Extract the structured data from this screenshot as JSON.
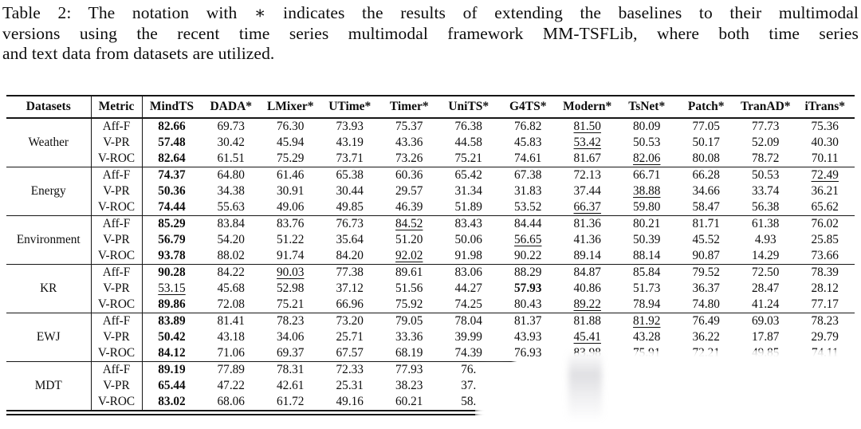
{
  "caption": {
    "lines": [
      "Table 2:  The notation with ∗ indicates the results of extending the baselines to their multimodal",
      "versions using the recent time series multimodal framework MM-TSFLib, where both time series",
      "and text data from datasets are utilized."
    ]
  },
  "table": {
    "columns": [
      "Datasets",
      "Metric",
      "MindTS",
      "DADA*",
      "LMixer*",
      "UTime*",
      "Timer*",
      "UniTS*",
      "G4TS*",
      "Modern*",
      "TsNet*",
      "Patch*",
      "TranAD*",
      "iTrans*"
    ],
    "style_legend": {
      "b": "bold",
      "u": "underlined",
      "n": "normal"
    },
    "groups": [
      {
        "dataset": "Weather",
        "rows": [
          {
            "metric": "Aff-F",
            "cells": [
              "b:82.66",
              "n:69.73",
              "n:76.30",
              "n:73.93",
              "n:75.37",
              "n:76.38",
              "n:76.82",
              "u:81.50",
              "n:80.09",
              "n:77.05",
              "n:77.73",
              "n:75.36"
            ]
          },
          {
            "metric": "V-PR",
            "cells": [
              "b:57.48",
              "n:30.42",
              "n:45.94",
              "n:43.19",
              "n:43.36",
              "n:44.58",
              "n:45.83",
              "u:53.42",
              "n:50.53",
              "n:50.17",
              "n:52.09",
              "n:40.30"
            ]
          },
          {
            "metric": "V-ROC",
            "cells": [
              "b:82.64",
              "n:61.51",
              "n:75.29",
              "n:73.71",
              "n:73.26",
              "n:75.21",
              "n:74.61",
              "n:81.67",
              "u:82.06",
              "n:80.08",
              "n:78.72",
              "n:70.11"
            ]
          }
        ]
      },
      {
        "dataset": "Energy",
        "rows": [
          {
            "metric": "Aff-F",
            "cells": [
              "b:74.37",
              "n:64.80",
              "n:61.46",
              "n:65.38",
              "n:60.36",
              "n:65.42",
              "n:67.38",
              "n:72.13",
              "n:66.71",
              "n:66.28",
              "n:50.53",
              "u:72.49"
            ]
          },
          {
            "metric": "V-PR",
            "cells": [
              "b:50.36",
              "n:34.38",
              "n:30.91",
              "n:30.44",
              "n:29.57",
              "n:31.34",
              "n:31.83",
              "n:37.44",
              "u:38.88",
              "n:34.66",
              "n:33.74",
              "n:36.21"
            ]
          },
          {
            "metric": "V-ROC",
            "cells": [
              "b:74.44",
              "n:55.63",
              "n:49.06",
              "n:49.85",
              "n:46.39",
              "n:51.89",
              "n:53.52",
              "u:66.37",
              "n:59.80",
              "n:58.47",
              "n:56.38",
              "n:65.62"
            ]
          }
        ]
      },
      {
        "dataset": "Environment",
        "rows": [
          {
            "metric": "Aff-F",
            "cells": [
              "b:85.29",
              "n:83.84",
              "n:83.76",
              "n:76.73",
              "u:84.52",
              "n:83.43",
              "n:84.44",
              "n:81.36",
              "n:80.21",
              "n:81.71",
              "n:61.38",
              "n:76.02"
            ]
          },
          {
            "metric": "V-PR",
            "cells": [
              "b:56.79",
              "n:54.20",
              "n:51.22",
              "n:35.64",
              "n:51.20",
              "n:50.06",
              "u:56.65",
              "n:41.36",
              "n:50.39",
              "n:45.52",
              "n:4.93",
              "n:25.85"
            ]
          },
          {
            "metric": "V-ROC",
            "cells": [
              "b:93.78",
              "n:88.02",
              "n:91.74",
              "n:84.20",
              "u:92.02",
              "n:91.98",
              "n:90.22",
              "n:89.14",
              "n:88.14",
              "n:90.87",
              "n:14.29",
              "n:73.66"
            ]
          }
        ]
      },
      {
        "dataset": "KR",
        "rows": [
          {
            "metric": "Aff-F",
            "cells": [
              "b:90.28",
              "n:84.22",
              "u:90.03",
              "n:77.38",
              "n:89.61",
              "n:83.06",
              "n:88.29",
              "n:84.87",
              "n:85.84",
              "n:79.52",
              "n:72.50",
              "n:78.39"
            ]
          },
          {
            "metric": "V-PR",
            "cells": [
              "u:53.15",
              "n:45.68",
              "n:52.98",
              "n:37.12",
              "n:51.56",
              "n:44.27",
              "b:57.93",
              "n:40.86",
              "n:51.73",
              "n:36.37",
              "n:28.47",
              "n:28.12"
            ]
          },
          {
            "metric": "V-ROC",
            "cells": [
              "b:89.86",
              "n:72.08",
              "n:75.21",
              "n:66.96",
              "n:75.92",
              "n:74.25",
              "n:80.43",
              "u:89.22",
              "n:78.94",
              "n:74.80",
              "n:41.24",
              "n:77.17"
            ]
          }
        ]
      },
      {
        "dataset": "EWJ",
        "rows": [
          {
            "metric": "Aff-F",
            "cells": [
              "b:83.89",
              "n:81.41",
              "n:78.23",
              "n:73.20",
              "n:79.05",
              "n:78.04",
              "n:81.37",
              "n:81.88",
              "u:81.92",
              "n:76.49",
              "n:69.03",
              "n:78.23"
            ]
          },
          {
            "metric": "V-PR",
            "cells": [
              "b:50.42",
              "n:43.18",
              "n:34.06",
              "n:25.71",
              "n:33.36",
              "n:39.99",
              "n:43.93",
              "u:45.41",
              "n:43.28",
              "n:36.22",
              "n:17.87",
              "n:29.79"
            ]
          },
          {
            "metric": "V-ROC",
            "cells": [
              "b:84.12",
              "n:71.06",
              "n:69.37",
              "n:67.57",
              "n:68.19",
              "n:74.39",
              "n:76.93",
              "u:83.98",
              "n:75.91",
              "n:72.21",
              "n:49.85",
              "n:74.11"
            ]
          }
        ]
      },
      {
        "dataset": "MDT",
        "rows": [
          {
            "metric": "Aff-F",
            "cells": [
              "b:89.19",
              "n:77.89",
              "n:78.31",
              "n:72.33",
              "n:77.93",
              "n:76.",
              "n:",
              "n:",
              "n:",
              "n:",
              "n:",
              "n:"
            ]
          },
          {
            "metric": "V-PR",
            "cells": [
              "b:65.44",
              "n:47.22",
              "n:42.61",
              "n:25.31",
              "n:38.23",
              "n:37.",
              "n:",
              "n:",
              "n:",
              "n:",
              "n:",
              "n:"
            ]
          },
          {
            "metric": "V-ROC",
            "cells": [
              "b:83.02",
              "n:68.06",
              "n:61.72",
              "n:49.16",
              "n:60.21",
              "n:58.",
              "n:",
              "n:",
              "n:",
              "n:",
              "n:",
              "n:"
            ]
          }
        ]
      }
    ]
  }
}
